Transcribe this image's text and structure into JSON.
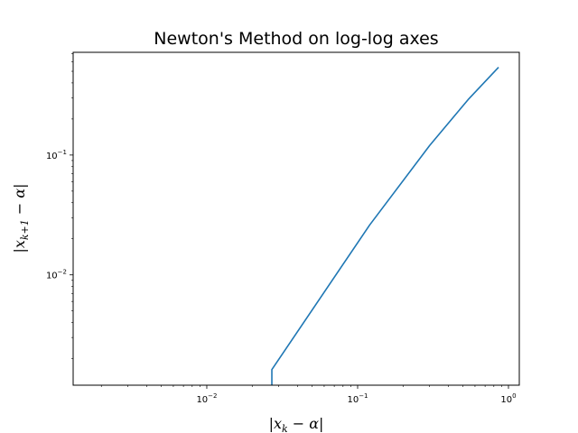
{
  "chart_data": {
    "type": "line",
    "title": "Newton's Method on log-log axes",
    "xlabel": "|x_k - α|",
    "ylabel": "|x_{k+1} - α|",
    "xscale": "log",
    "yscale": "log",
    "xlim": [
      0.0013,
      1.18
    ],
    "ylim": [
      0.0012,
      0.72
    ],
    "grid": false,
    "legend": "none",
    "x_tick_labels": [
      {
        "value": 0.01,
        "base": "10",
        "exp": "−2"
      },
      {
        "value": 0.1,
        "base": "10",
        "exp": "−1"
      },
      {
        "value": 1,
        "base": "10",
        "exp": "0"
      }
    ],
    "y_tick_labels": [
      {
        "value": 0.01,
        "base": "10",
        "exp": "−2"
      },
      {
        "value": 0.1,
        "base": "10",
        "exp": "−1"
      }
    ],
    "series": [
      {
        "color": "#1f77b4",
        "x": [
          0.027,
          0.027,
          0.12,
          0.3,
          0.54,
          0.86
        ],
        "y": [
          0.0012,
          0.00162,
          0.026,
          0.12,
          0.29,
          0.54
        ]
      }
    ]
  }
}
